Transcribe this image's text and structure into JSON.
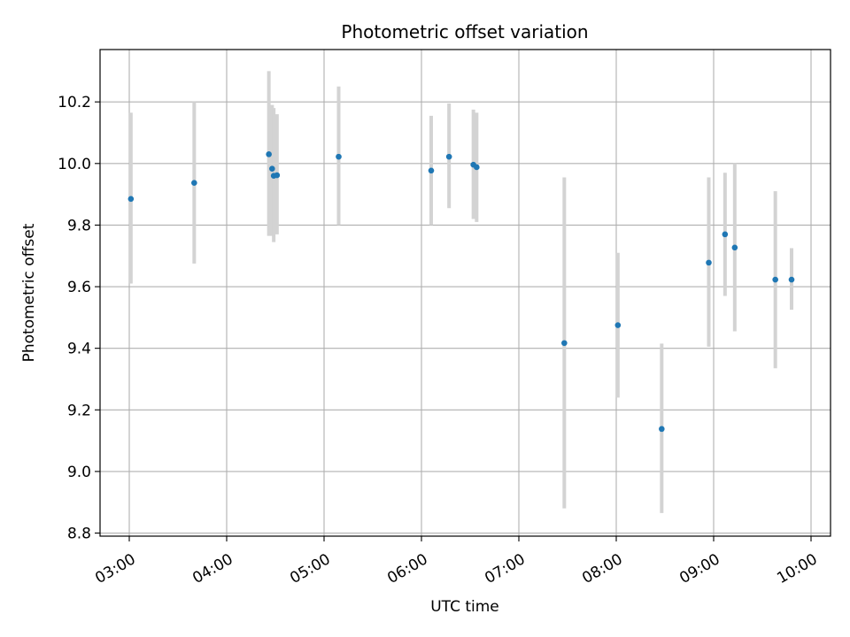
{
  "chart_data": {
    "type": "scatter",
    "title": "Photometric offset variation",
    "xlabel": "UTC time",
    "ylabel": "Photometric offset",
    "grid": true,
    "xlim": [
      "02:42",
      "10:12"
    ],
    "ylim": [
      8.79,
      10.37
    ],
    "x_ticks": [
      "03:00",
      "04:00",
      "05:00",
      "06:00",
      "07:00",
      "08:00",
      "09:00",
      "10:00"
    ],
    "y_ticks": [
      "8.8",
      "9.0",
      "9.2",
      "9.4",
      "9.6",
      "9.8",
      "10.0",
      "10.2"
    ],
    "colors": {
      "point": "#1f77b4",
      "errorbar": "#d3d3d3",
      "grid": "#b0b0b0"
    },
    "points": [
      {
        "x": "03:01",
        "y": 9.885,
        "ylo": 9.61,
        "yhi": 10.165
      },
      {
        "x": "03:40",
        "y": 9.937,
        "ylo": 9.675,
        "yhi": 10.2
      },
      {
        "x": "04:26",
        "y": 10.03,
        "ylo": 9.765,
        "yhi": 10.3
      },
      {
        "x": "04:28",
        "y": 9.983,
        "ylo": 9.765,
        "yhi": 10.19
      },
      {
        "x": "04:29",
        "y": 9.96,
        "ylo": 9.745,
        "yhi": 10.18
      },
      {
        "x": "04:31",
        "y": 9.962,
        "ylo": 9.77,
        "yhi": 10.16
      },
      {
        "x": "05:09",
        "y": 10.022,
        "ylo": 9.8,
        "yhi": 10.25
      },
      {
        "x": "06:06",
        "y": 9.977,
        "ylo": 9.8,
        "yhi": 10.155
      },
      {
        "x": "06:17",
        "y": 10.022,
        "ylo": 9.855,
        "yhi": 10.195
      },
      {
        "x": "06:32",
        "y": 9.996,
        "ylo": 9.82,
        "yhi": 10.175
      },
      {
        "x": "06:34",
        "y": 9.988,
        "ylo": 9.81,
        "yhi": 10.165
      },
      {
        "x": "07:28",
        "y": 9.417,
        "ylo": 8.88,
        "yhi": 9.955
      },
      {
        "x": "08:01",
        "y": 9.475,
        "ylo": 9.24,
        "yhi": 9.71
      },
      {
        "x": "08:28",
        "y": 9.138,
        "ylo": 8.865,
        "yhi": 9.415
      },
      {
        "x": "08:57",
        "y": 9.678,
        "ylo": 9.405,
        "yhi": 9.955
      },
      {
        "x": "09:07",
        "y": 9.77,
        "ylo": 9.57,
        "yhi": 9.97
      },
      {
        "x": "09:13",
        "y": 9.727,
        "ylo": 9.455,
        "yhi": 10.0
      },
      {
        "x": "09:38",
        "y": 9.623,
        "ylo": 9.335,
        "yhi": 9.91
      },
      {
        "x": "09:48",
        "y": 9.623,
        "ylo": 9.525,
        "yhi": 9.725
      }
    ]
  }
}
